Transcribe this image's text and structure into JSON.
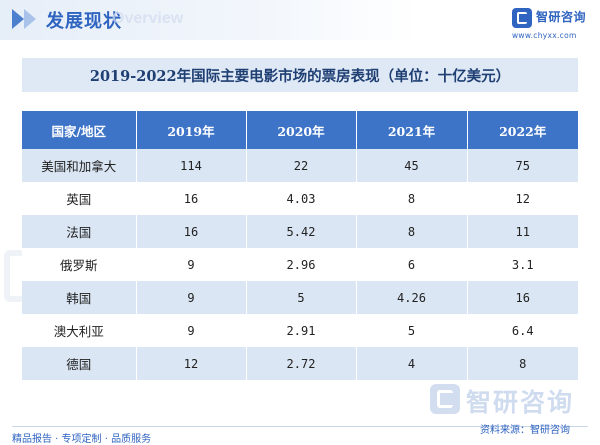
{
  "header": {
    "title": "发展现状",
    "subtitle": "Overview",
    "brand": "智研咨询",
    "url": "www.chyxx.com"
  },
  "table": {
    "title": "2019-2022年国际主要电影市场的票房表现（单位：十亿美元）",
    "columns": [
      "国家/地区",
      "2019年",
      "2020年",
      "2021年",
      "2022年"
    ],
    "rows": [
      {
        "name": "美国和加拿大",
        "values": [
          "114",
          "22",
          "45",
          "75"
        ]
      },
      {
        "name": "英国",
        "values": [
          "16",
          "4.03",
          "8",
          "12"
        ]
      },
      {
        "name": "法国",
        "values": [
          "16",
          "5.42",
          "8",
          "11"
        ]
      },
      {
        "name": "俄罗斯",
        "values": [
          "9",
          "2.96",
          "6",
          "3.1"
        ]
      },
      {
        "name": "韩国",
        "values": [
          "9",
          "5",
          "4.26",
          "16"
        ]
      },
      {
        "name": "澳大利亚",
        "values": [
          "9",
          "2.91",
          "5",
          "6.4"
        ]
      },
      {
        "name": "德国",
        "values": [
          "12",
          "2.72",
          "4",
          "8"
        ]
      }
    ]
  },
  "footer": {
    "left": "精品报告 · 专项定制 · 品质服务",
    "right": "资料来源：智研咨询",
    "watermark_brand": "智研咨询"
  },
  "colors": {
    "accent": "#3e74c8",
    "row_alt": "#dbe6f4",
    "banner": "#dfe9f6"
  }
}
